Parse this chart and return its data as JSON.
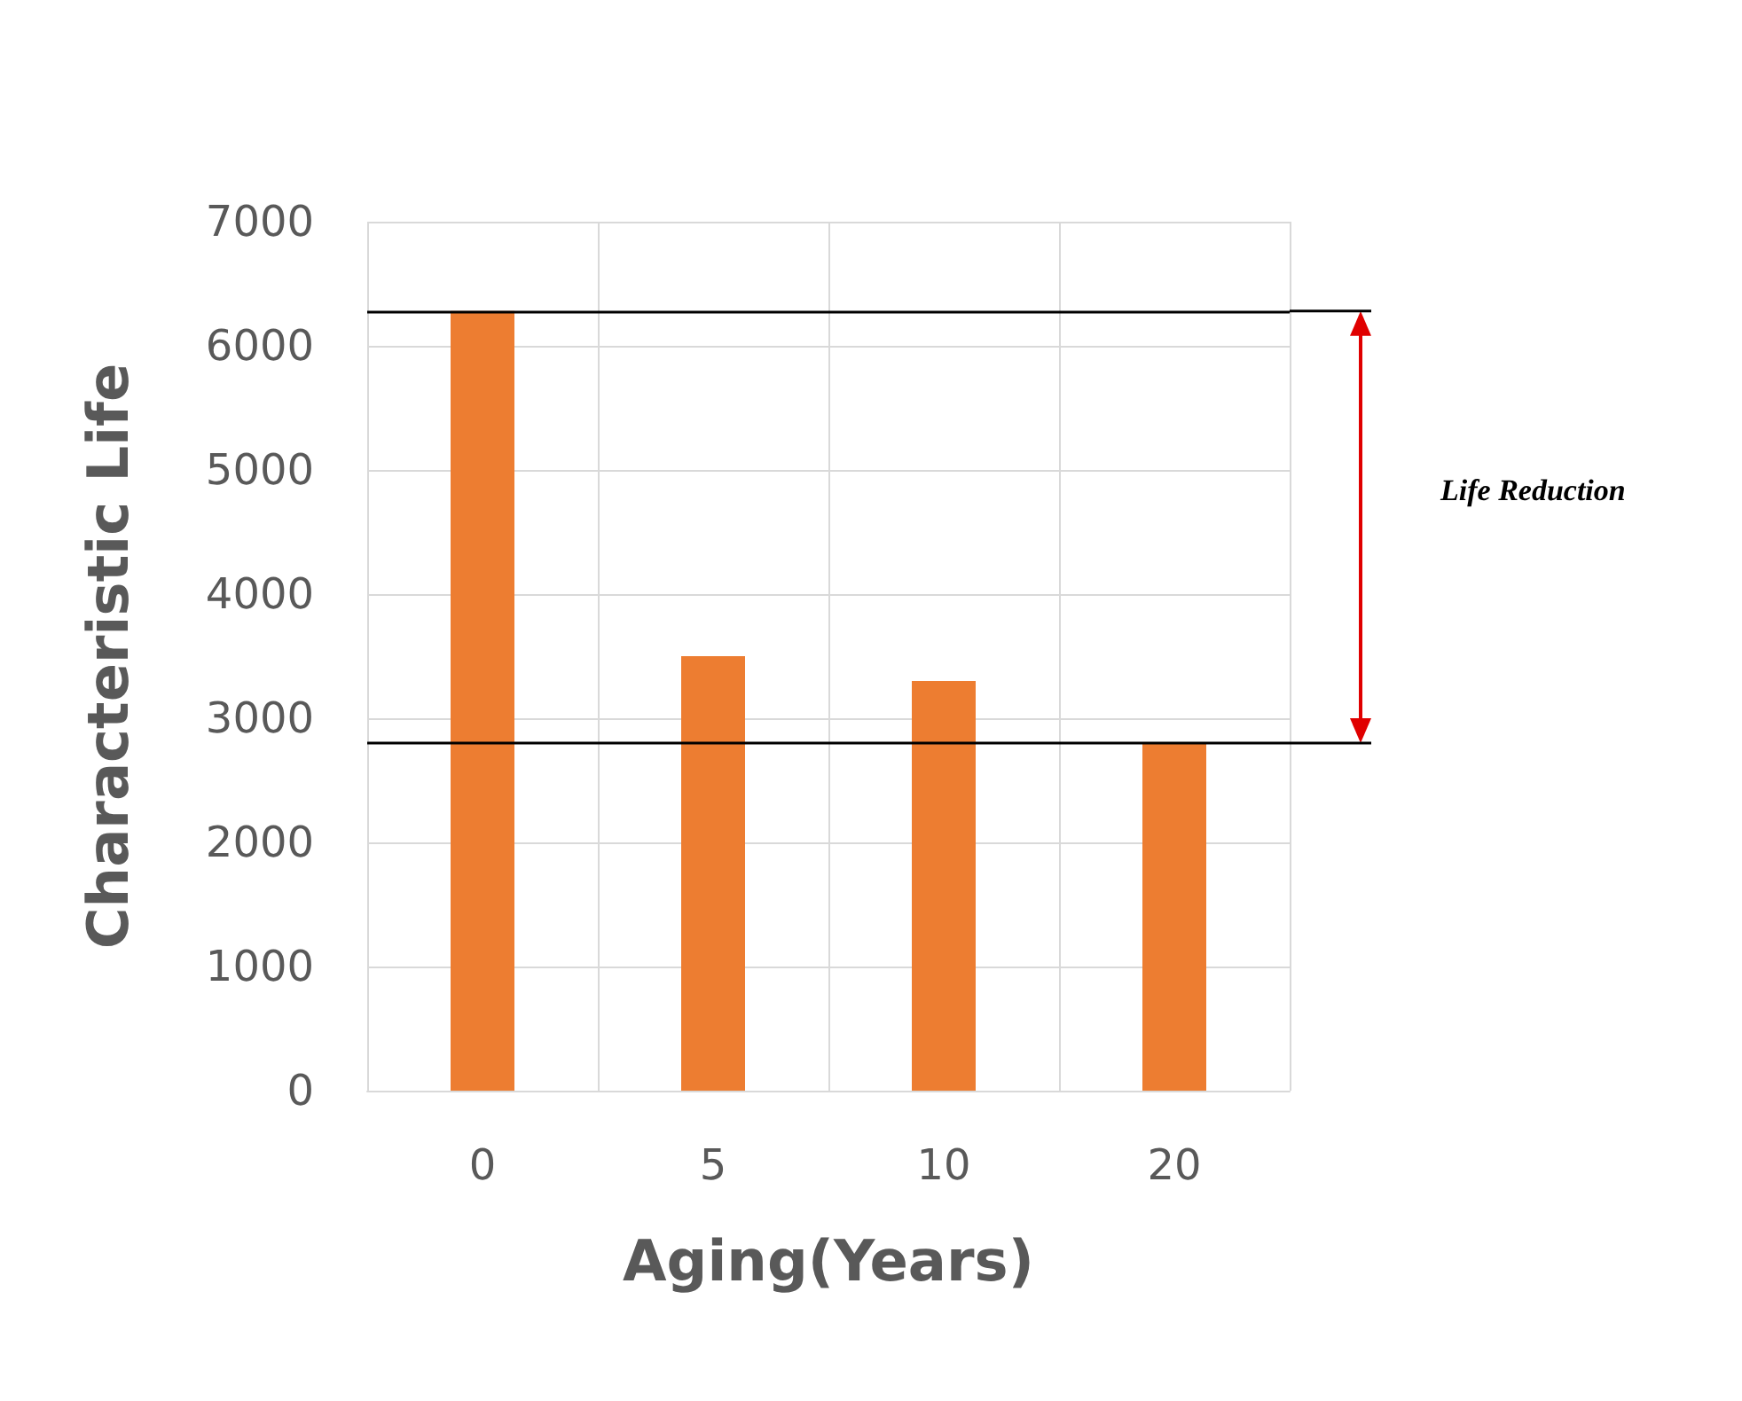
{
  "chart_data": {
    "type": "bar",
    "xlabel": "Aging(Years)",
    "ylabel": "Characteristic Life",
    "categories": [
      "0",
      "5",
      "10",
      "20"
    ],
    "values": [
      6280,
      3500,
      3300,
      2800
    ],
    "color": "#ed7d31",
    "ylim": [
      0,
      7000
    ],
    "yticks": [
      0,
      1000,
      2000,
      3000,
      4000,
      5000,
      6000,
      7000
    ],
    "grid": true,
    "ref_lines": [
      {
        "axis": "y",
        "value": 6280,
        "color": "#000000"
      },
      {
        "axis": "y",
        "value": 2800,
        "color": "#000000"
      }
    ],
    "annotations": [
      "Life Reduction"
    ]
  }
}
